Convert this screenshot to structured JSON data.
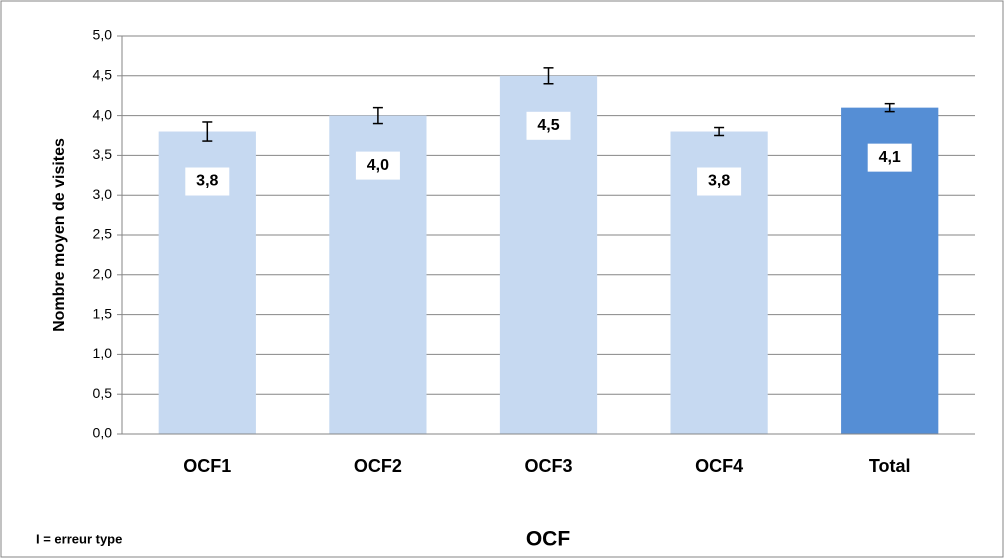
{
  "chart_data": {
    "type": "bar",
    "categories": [
      "OCF1",
      "OCF2",
      "OCF3",
      "OCF4",
      "Total"
    ],
    "values": [
      3.8,
      4.0,
      4.5,
      3.8,
      4.1
    ],
    "value_labels": [
      "3,8",
      "4,0",
      "4,5",
      "3,8",
      "4,1"
    ],
    "errors": [
      0.12,
      0.1,
      0.1,
      0.05,
      0.05
    ],
    "colors": [
      "#c6d9f1",
      "#c6d9f1",
      "#c6d9f1",
      "#c6d9f1",
      "#558ed5"
    ],
    "ylabel": "Nombre moyen de visites",
    "xlabel": "OCF",
    "note": "I = erreur type",
    "ylim": [
      0,
      5
    ],
    "yticks": [
      {
        "value": 0,
        "label": "0,0"
      },
      {
        "value": 0.5,
        "label": "0,5"
      },
      {
        "value": 1,
        "label": "1,0"
      },
      {
        "value": 1.5,
        "label": "1,5"
      },
      {
        "value": 2,
        "label": "2,0"
      },
      {
        "value": 2.5,
        "label": "2,5"
      },
      {
        "value": 3,
        "label": "3,0"
      },
      {
        "value": 3.5,
        "label": "3,5"
      },
      {
        "value": 4,
        "label": "4,0"
      },
      {
        "value": 4.5,
        "label": "4,5"
      },
      {
        "value": 5,
        "label": "5,0"
      }
    ],
    "grid": true
  }
}
